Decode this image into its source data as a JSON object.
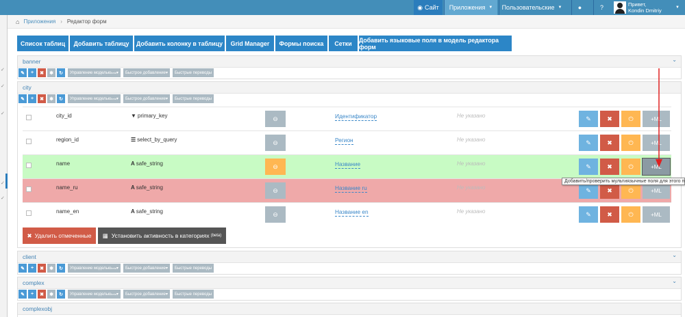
{
  "topbar": {
    "site": "Сайт",
    "apps": "Приложения",
    "users": "Пользовательские",
    "greeting": "Привет,",
    "username": "Kondin Dmitriy"
  },
  "breadcrumb": {
    "home": "Приложения",
    "current": "Редактор форм"
  },
  "tabs": [
    "Список таблиц",
    "Добавить таблицу",
    "Добавить колонку в таблицу",
    "Grid Manager",
    "Формы поиска",
    "Сетки",
    "Добавить языковые поля в модель редактора форм"
  ],
  "toolbar": {
    "model": "Управление моделью",
    "beta": "beta",
    "quick_add": "Быстрое добавление",
    "quick_trans": "Быстрые переводы"
  },
  "panels": [
    "banner",
    "city",
    "client",
    "complex",
    "complexobj"
  ],
  "rows": [
    {
      "name": "city_id",
      "type": "primary_key",
      "label": "Идентификатор",
      "desc": "Не указано"
    },
    {
      "name": "region_id",
      "type": "select_by_query",
      "label": "Регион",
      "desc": "Не указано"
    },
    {
      "name": "name",
      "type": "safe_string",
      "label": "Название",
      "desc": "Не указано"
    },
    {
      "name": "name_ru",
      "type": "safe_string",
      "label": "Название ru",
      "desc": "Не указано"
    },
    {
      "name": "name_en",
      "type": "safe_string",
      "label": "Название en",
      "desc": "Не указано"
    }
  ],
  "row_button_ml": "ML",
  "delete_btn": "Удалить отмеченные",
  "activity_btn": "Установить активность в категориях",
  "activity_beta": "(beta)",
  "tooltip": "Добавить/проверить мультиязычные поля для этого по",
  "colors": {
    "topbar": "#438eb9",
    "tab": "#2c86c7",
    "green_row": "#c8fbc4",
    "pink_row": "#efa9a9",
    "arrow": "#e02020"
  }
}
